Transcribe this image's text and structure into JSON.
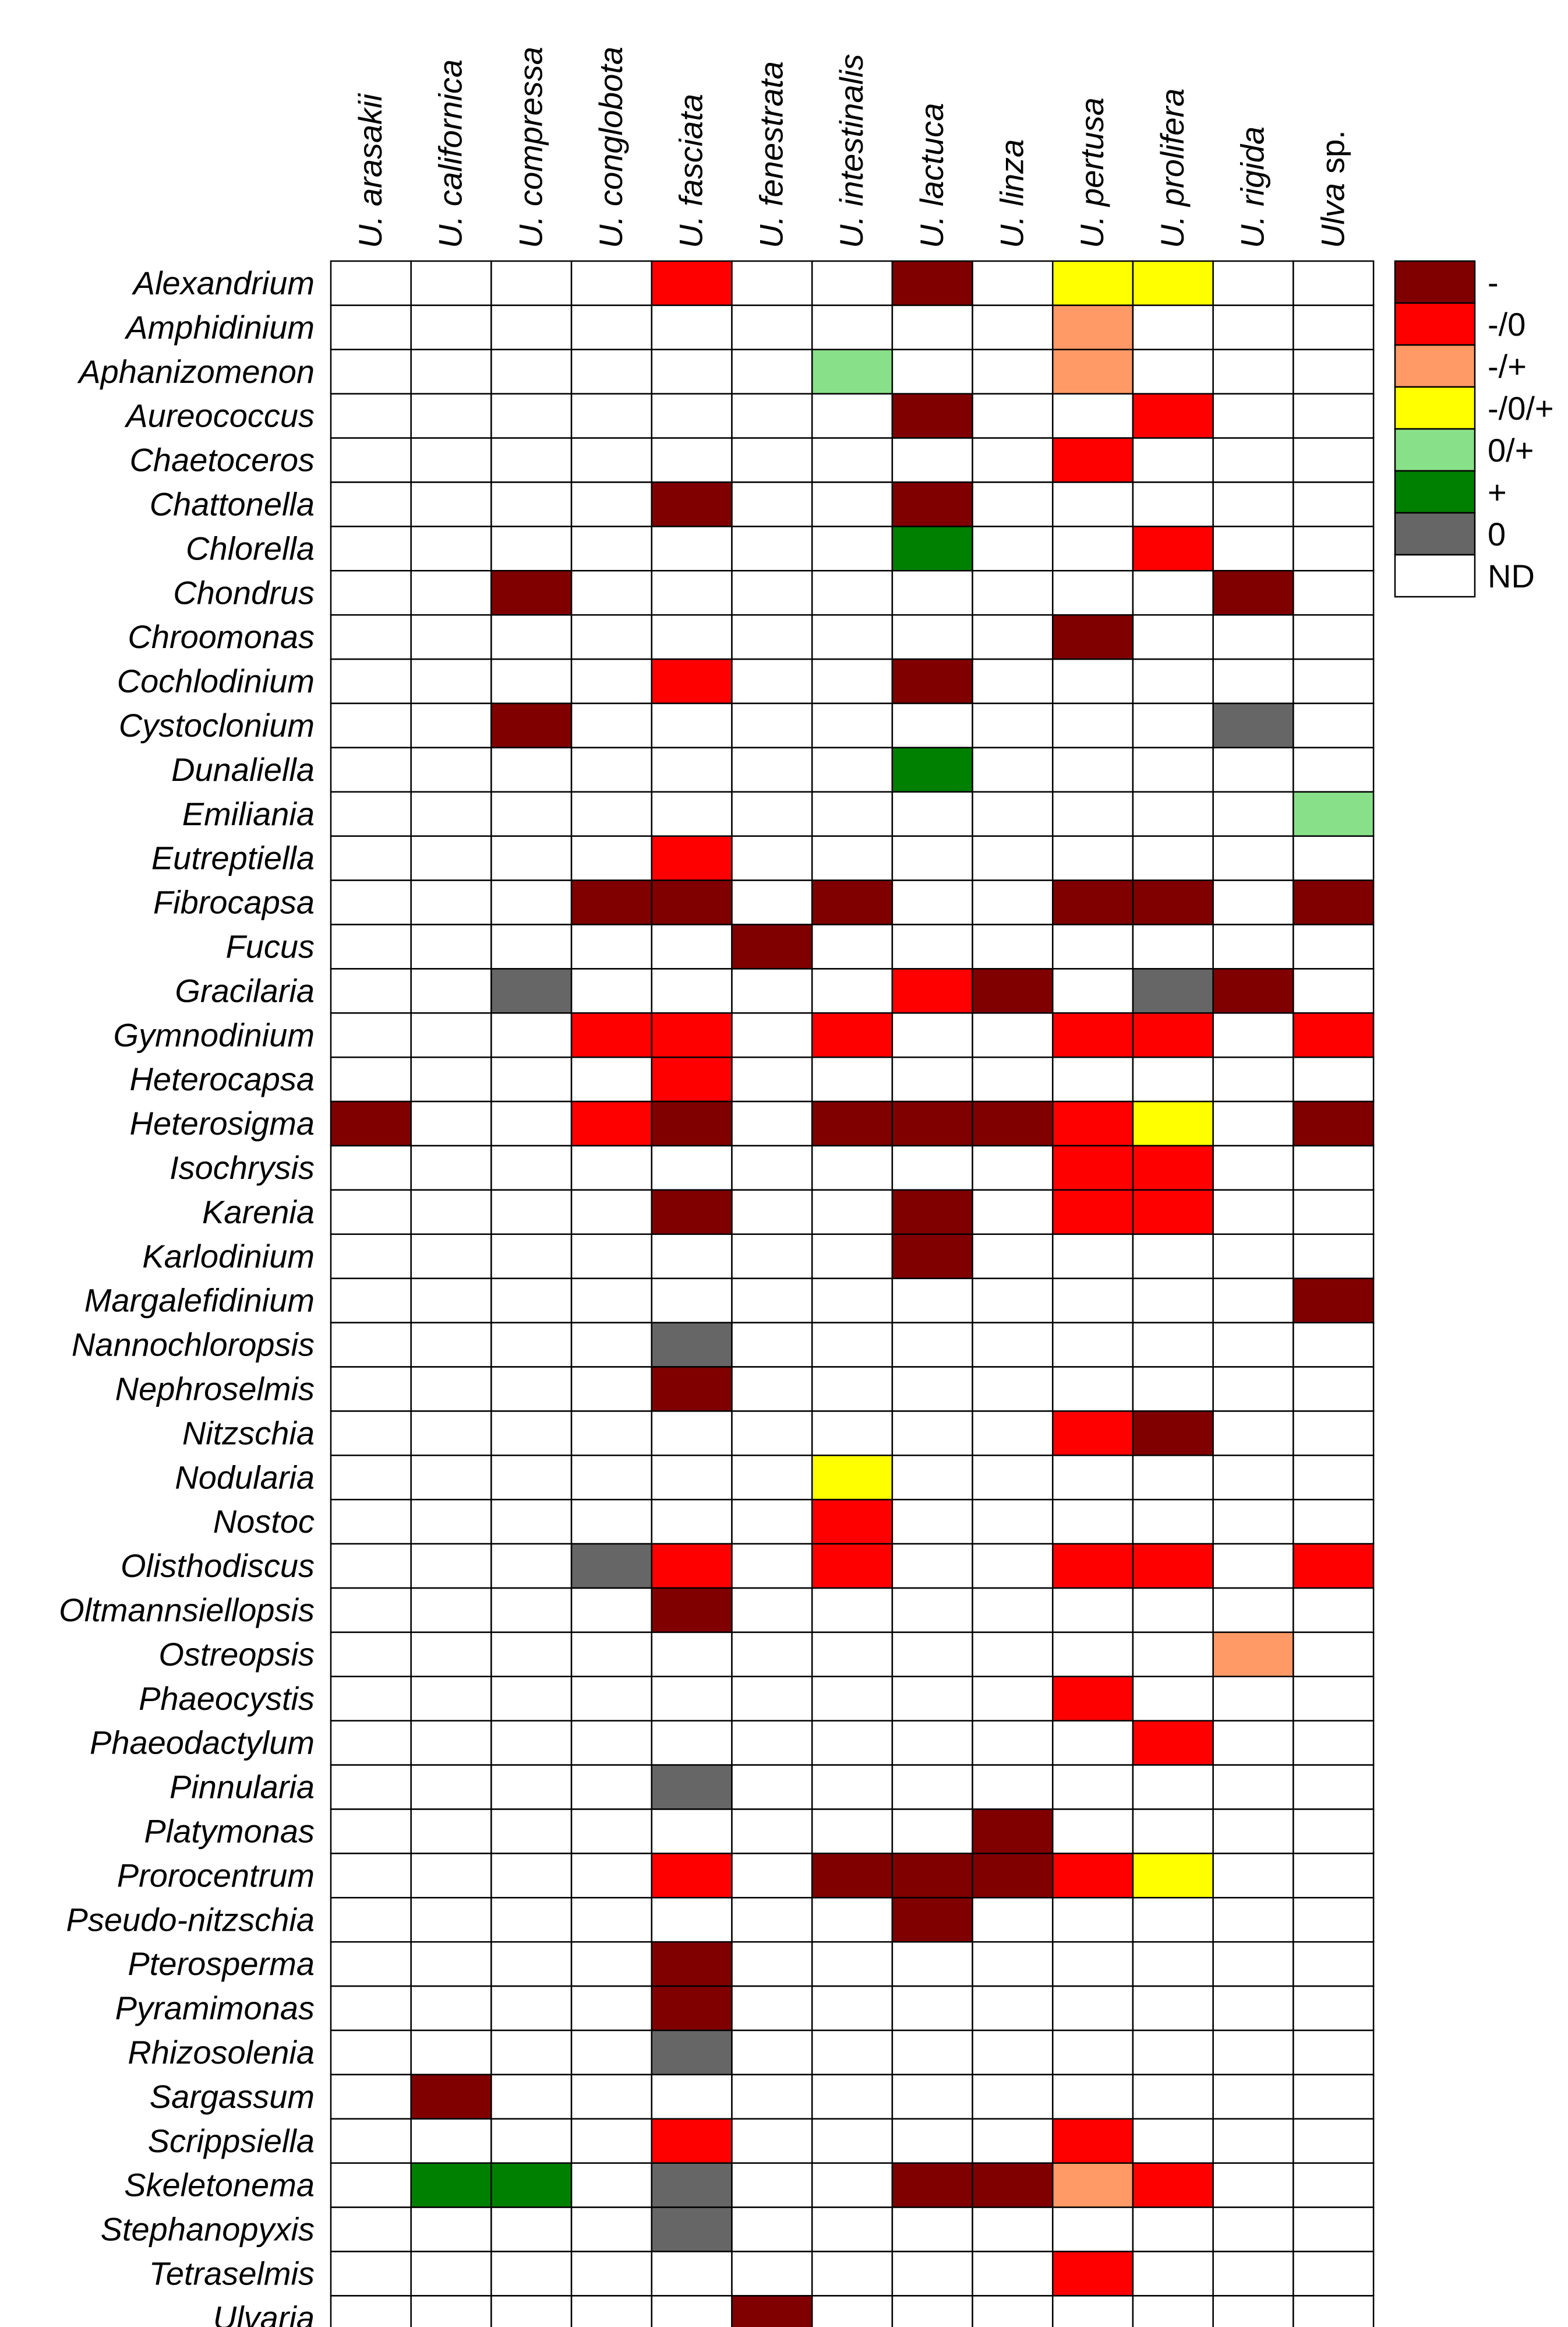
{
  "chart_data": {
    "type": "heatmap",
    "columns": [
      {
        "prefix": "U.",
        "name": "arasakii",
        "suffix": ""
      },
      {
        "prefix": "U.",
        "name": "californica",
        "suffix": ""
      },
      {
        "prefix": "U.",
        "name": "compressa",
        "suffix": ""
      },
      {
        "prefix": "U.",
        "name": "conglobota",
        "suffix": ""
      },
      {
        "prefix": "U.",
        "name": "fasciata",
        "suffix": ""
      },
      {
        "prefix": "U.",
        "name": "fenestrata",
        "suffix": ""
      },
      {
        "prefix": "U.",
        "name": "intestinalis",
        "suffix": ""
      },
      {
        "prefix": "U.",
        "name": "lactuca",
        "suffix": ""
      },
      {
        "prefix": "U.",
        "name": "linza",
        "suffix": ""
      },
      {
        "prefix": "U.",
        "name": "pertusa",
        "suffix": ""
      },
      {
        "prefix": "U.",
        "name": "prolifera",
        "suffix": ""
      },
      {
        "prefix": "U.",
        "name": "rigida",
        "suffix": ""
      },
      {
        "prefix": "",
        "name": "Ulva",
        "suffix": "sp."
      }
    ],
    "rows": [
      "Alexandrium",
      "Amphidinium",
      "Aphanizomenon",
      "Aureococcus",
      "Chaetoceros",
      "Chattonella",
      "Chlorella",
      "Chondrus",
      "Chroomonas",
      "Cochlodinium",
      "Cystoclonium",
      "Dunaliella",
      "Emiliania",
      "Eutreptiella",
      "Fibrocapsa",
      "Fucus",
      "Gracilaria",
      "Gymnodinium",
      "Heterocapsa",
      "Heterosigma",
      "Isochrysis",
      "Karenia",
      "Karlodinium",
      "Margalefidinium",
      "Nannochloropsis",
      "Nephroselmis",
      "Nitzschia",
      "Nodularia",
      "Nostoc",
      "Olisthodiscus",
      "Oltmannsiellopsis",
      "Ostreopsis",
      "Phaeocystis",
      "Phaeodactylum",
      "Pinnularia",
      "Platymonas",
      "Prorocentrum",
      "Pseudo-nitzschia",
      "Pterosperma",
      "Pyramimonas",
      "Rhizosolenia",
      "Sargassum",
      "Scrippsiella",
      "Skeletonema",
      "Stephanopyxis",
      "Tetraselmis",
      "Ulvaria"
    ],
    "categories": [
      {
        "key": "-",
        "label": "-",
        "color": "#800000"
      },
      {
        "key": "-/0",
        "label": "-/0",
        "color": "#ff0000"
      },
      {
        "key": "-/+",
        "label": "-/+",
        "color": "#ff9966"
      },
      {
        "key": "-/0/+",
        "label": "-/0/+",
        "color": "#ffff00"
      },
      {
        "key": "0/+",
        "label": "0/+",
        "color": "#88e088"
      },
      {
        "key": "+",
        "label": "+",
        "color": "#008000"
      },
      {
        "key": "0",
        "label": "0",
        "color": "#666666"
      },
      {
        "key": "ND",
        "label": "ND",
        "color": "#ffffff"
      }
    ],
    "legend_position": "top-right",
    "values": [
      [
        "ND",
        "ND",
        "ND",
        "ND",
        "-/0",
        "ND",
        "ND",
        "-",
        "ND",
        "-/0/+",
        "-/0/+",
        "ND",
        "ND"
      ],
      [
        "ND",
        "ND",
        "ND",
        "ND",
        "ND",
        "ND",
        "ND",
        "ND",
        "ND",
        "-/+",
        "ND",
        "ND",
        "ND"
      ],
      [
        "ND",
        "ND",
        "ND",
        "ND",
        "ND",
        "ND",
        "0/+",
        "ND",
        "ND",
        "-/+",
        "ND",
        "ND",
        "ND"
      ],
      [
        "ND",
        "ND",
        "ND",
        "ND",
        "ND",
        "ND",
        "ND",
        "-",
        "ND",
        "ND",
        "-/0",
        "ND",
        "ND"
      ],
      [
        "ND",
        "ND",
        "ND",
        "ND",
        "ND",
        "ND",
        "ND",
        "ND",
        "ND",
        "-/0",
        "ND",
        "ND",
        "ND"
      ],
      [
        "ND",
        "ND",
        "ND",
        "ND",
        "-",
        "ND",
        "ND",
        "-",
        "ND",
        "ND",
        "ND",
        "ND",
        "ND"
      ],
      [
        "ND",
        "ND",
        "ND",
        "ND",
        "ND",
        "ND",
        "ND",
        "+",
        "ND",
        "ND",
        "-/0",
        "ND",
        "ND"
      ],
      [
        "ND",
        "ND",
        "-",
        "ND",
        "ND",
        "ND",
        "ND",
        "ND",
        "ND",
        "ND",
        "ND",
        "-",
        "ND"
      ],
      [
        "ND",
        "ND",
        "ND",
        "ND",
        "ND",
        "ND",
        "ND",
        "ND",
        "ND",
        "-",
        "ND",
        "ND",
        "ND"
      ],
      [
        "ND",
        "ND",
        "ND",
        "ND",
        "-/0",
        "ND",
        "ND",
        "-",
        "ND",
        "ND",
        "ND",
        "ND",
        "ND"
      ],
      [
        "ND",
        "ND",
        "-",
        "ND",
        "ND",
        "ND",
        "ND",
        "ND",
        "ND",
        "ND",
        "ND",
        "0",
        "ND"
      ],
      [
        "ND",
        "ND",
        "ND",
        "ND",
        "ND",
        "ND",
        "ND",
        "+",
        "ND",
        "ND",
        "ND",
        "ND",
        "ND"
      ],
      [
        "ND",
        "ND",
        "ND",
        "ND",
        "ND",
        "ND",
        "ND",
        "ND",
        "ND",
        "ND",
        "ND",
        "ND",
        "0/+"
      ],
      [
        "ND",
        "ND",
        "ND",
        "ND",
        "-/0",
        "ND",
        "ND",
        "ND",
        "ND",
        "ND",
        "ND",
        "ND",
        "ND"
      ],
      [
        "ND",
        "ND",
        "ND",
        "-",
        "-",
        "ND",
        "-",
        "ND",
        "ND",
        "-",
        "-",
        "ND",
        "-"
      ],
      [
        "ND",
        "ND",
        "ND",
        "ND",
        "ND",
        "-",
        "ND",
        "ND",
        "ND",
        "ND",
        "ND",
        "ND",
        "ND"
      ],
      [
        "ND",
        "ND",
        "0",
        "ND",
        "ND",
        "ND",
        "ND",
        "-/0",
        "-",
        "ND",
        "0",
        "-",
        "ND"
      ],
      [
        "ND",
        "ND",
        "ND",
        "-/0",
        "-/0",
        "ND",
        "-/0",
        "ND",
        "ND",
        "-/0",
        "-/0",
        "ND",
        "-/0"
      ],
      [
        "ND",
        "ND",
        "ND",
        "ND",
        "-/0",
        "ND",
        "ND",
        "ND",
        "ND",
        "ND",
        "ND",
        "ND",
        "ND"
      ],
      [
        "-",
        "ND",
        "ND",
        "-/0",
        "-",
        "ND",
        "-",
        "-",
        "-",
        "-/0",
        "-/0/+",
        "ND",
        "-"
      ],
      [
        "ND",
        "ND",
        "ND",
        "ND",
        "ND",
        "ND",
        "ND",
        "ND",
        "ND",
        "-/0",
        "-/0",
        "ND",
        "ND"
      ],
      [
        "ND",
        "ND",
        "ND",
        "ND",
        "-",
        "ND",
        "ND",
        "-",
        "ND",
        "-/0",
        "-/0",
        "ND",
        "ND"
      ],
      [
        "ND",
        "ND",
        "ND",
        "ND",
        "ND",
        "ND",
        "ND",
        "-",
        "ND",
        "ND",
        "ND",
        "ND",
        "ND"
      ],
      [
        "ND",
        "ND",
        "ND",
        "ND",
        "ND",
        "ND",
        "ND",
        "ND",
        "ND",
        "ND",
        "ND",
        "ND",
        "-"
      ],
      [
        "ND",
        "ND",
        "ND",
        "ND",
        "0",
        "ND",
        "ND",
        "ND",
        "ND",
        "ND",
        "ND",
        "ND",
        "ND"
      ],
      [
        "ND",
        "ND",
        "ND",
        "ND",
        "-",
        "ND",
        "ND",
        "ND",
        "ND",
        "ND",
        "ND",
        "ND",
        "ND"
      ],
      [
        "ND",
        "ND",
        "ND",
        "ND",
        "ND",
        "ND",
        "ND",
        "ND",
        "ND",
        "-/0",
        "-",
        "ND",
        "ND"
      ],
      [
        "ND",
        "ND",
        "ND",
        "ND",
        "ND",
        "ND",
        "-/0/+",
        "ND",
        "ND",
        "ND",
        "ND",
        "ND",
        "ND"
      ],
      [
        "ND",
        "ND",
        "ND",
        "ND",
        "ND",
        "ND",
        "-/0",
        "ND",
        "ND",
        "ND",
        "ND",
        "ND",
        "ND"
      ],
      [
        "ND",
        "ND",
        "ND",
        "0",
        "-/0",
        "ND",
        "-/0",
        "ND",
        "ND",
        "-/0",
        "-/0",
        "ND",
        "-/0"
      ],
      [
        "ND",
        "ND",
        "ND",
        "ND",
        "-",
        "ND",
        "ND",
        "ND",
        "ND",
        "ND",
        "ND",
        "ND",
        "ND"
      ],
      [
        "ND",
        "ND",
        "ND",
        "ND",
        "ND",
        "ND",
        "ND",
        "ND",
        "ND",
        "ND",
        "ND",
        "-/+",
        "ND"
      ],
      [
        "ND",
        "ND",
        "ND",
        "ND",
        "ND",
        "ND",
        "ND",
        "ND",
        "ND",
        "-/0",
        "ND",
        "ND",
        "ND"
      ],
      [
        "ND",
        "ND",
        "ND",
        "ND",
        "ND",
        "ND",
        "ND",
        "ND",
        "ND",
        "ND",
        "-/0",
        "ND",
        "ND"
      ],
      [
        "ND",
        "ND",
        "ND",
        "ND",
        "0",
        "ND",
        "ND",
        "ND",
        "ND",
        "ND",
        "ND",
        "ND",
        "ND"
      ],
      [
        "ND",
        "ND",
        "ND",
        "ND",
        "ND",
        "ND",
        "ND",
        "ND",
        "-",
        "ND",
        "ND",
        "ND",
        "ND"
      ],
      [
        "ND",
        "ND",
        "ND",
        "ND",
        "-/0",
        "ND",
        "-",
        "-",
        "-",
        "-/0",
        "-/0/+",
        "ND",
        "ND"
      ],
      [
        "ND",
        "ND",
        "ND",
        "ND",
        "ND",
        "ND",
        "ND",
        "-",
        "ND",
        "ND",
        "ND",
        "ND",
        "ND"
      ],
      [
        "ND",
        "ND",
        "ND",
        "ND",
        "-",
        "ND",
        "ND",
        "ND",
        "ND",
        "ND",
        "ND",
        "ND",
        "ND"
      ],
      [
        "ND",
        "ND",
        "ND",
        "ND",
        "-",
        "ND",
        "ND",
        "ND",
        "ND",
        "ND",
        "ND",
        "ND",
        "ND"
      ],
      [
        "ND",
        "ND",
        "ND",
        "ND",
        "0",
        "ND",
        "ND",
        "ND",
        "ND",
        "ND",
        "ND",
        "ND",
        "ND"
      ],
      [
        "ND",
        "-",
        "ND",
        "ND",
        "ND",
        "ND",
        "ND",
        "ND",
        "ND",
        "ND",
        "ND",
        "ND",
        "ND"
      ],
      [
        "ND",
        "ND",
        "ND",
        "ND",
        "-/0",
        "ND",
        "ND",
        "ND",
        "ND",
        "-/0",
        "ND",
        "ND",
        "ND"
      ],
      [
        "ND",
        "+",
        "+",
        "ND",
        "0",
        "ND",
        "ND",
        "-",
        "-",
        "-/+",
        "-/0",
        "ND",
        "ND"
      ],
      [
        "ND",
        "ND",
        "ND",
        "ND",
        "0",
        "ND",
        "ND",
        "ND",
        "ND",
        "ND",
        "ND",
        "ND",
        "ND"
      ],
      [
        "ND",
        "ND",
        "ND",
        "ND",
        "ND",
        "ND",
        "ND",
        "ND",
        "ND",
        "-/0",
        "ND",
        "ND",
        "ND"
      ],
      [
        "ND",
        "ND",
        "ND",
        "ND",
        "ND",
        "-",
        "ND",
        "ND",
        "ND",
        "ND",
        "ND",
        "ND",
        "ND"
      ]
    ]
  }
}
